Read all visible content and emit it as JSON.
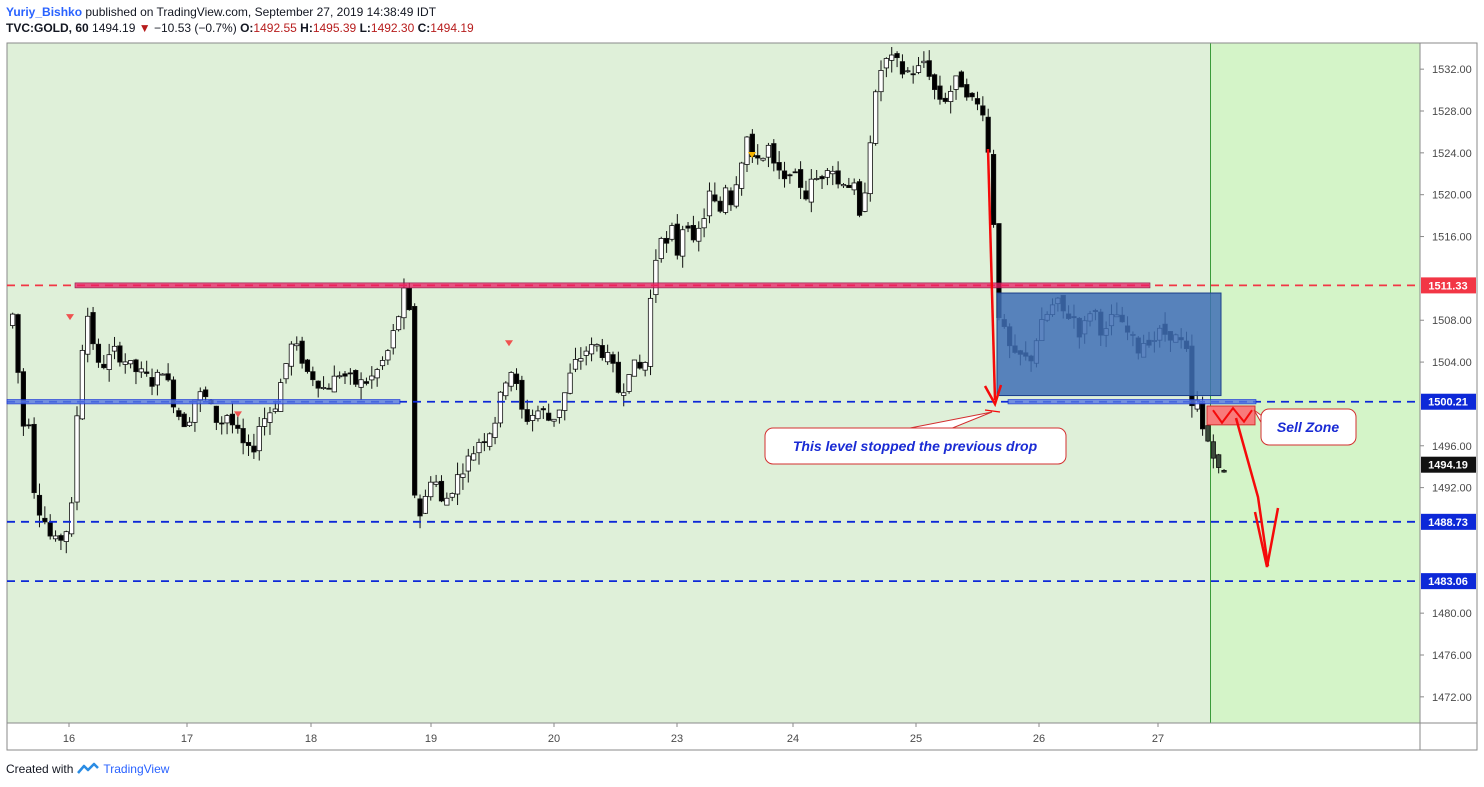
{
  "header": {
    "author": "Yuriy_Bishko",
    "published": "published on TradingView.com, September 27, 2019 14:38:49 IDT",
    "symbol": "TVC:GOLD, 60",
    "last": "1494.19",
    "change": "−10.53 (−0.7%)",
    "o_label": "O:",
    "o_value": "1492.55",
    "h_label": "H:",
    "h_value": "1495.39",
    "l_label": "L:",
    "l_value": "1492.30",
    "c_label": "C:",
    "c_value": "1494.19"
  },
  "footer": {
    "created": "Created with",
    "brand": "TradingView",
    "logo_icon": "tradingview-logo-icon"
  },
  "colors": {
    "bg_main": "#dff0d9",
    "bg_future": "#d4f4c8",
    "up_candle": "#ffffff",
    "down_candle": "#000000",
    "resistance": "#e91e63",
    "support": "#0d28d8",
    "arrow": "#f50a0a",
    "zone_blue": "#3f6fb5",
    "zone_red": "#f87b7b"
  },
  "chart_data": {
    "type": "candlestick",
    "symbol": "TVC:GOLD",
    "timeframe": "60",
    "x_ticks": [
      "16",
      "17",
      "18",
      "19",
      "20",
      "23",
      "24",
      "25",
      "26",
      "27"
    ],
    "y_ticks": [
      "1532.00",
      "1528.00",
      "1524.00",
      "1520.00",
      "1516.00",
      "1508.00",
      "1504.00",
      "1496.00",
      "1492.00",
      "1480.00",
      "1476.00",
      "1472.00"
    ],
    "ylim": [
      1469.5,
      1534.5
    ],
    "levels": [
      {
        "label": "1511.33",
        "value": 1511.33,
        "style": "dashed",
        "color": "#f23645"
      },
      {
        "label": "1500.21",
        "value": 1500.21,
        "style": "dashed",
        "color": "#0d28d8"
      },
      {
        "label": "1488.73",
        "value": 1488.73,
        "style": "dashed",
        "color": "#0d28d8"
      },
      {
        "label": "1483.06",
        "value": 1483.06,
        "style": "dashed",
        "color": "#0d28d8"
      }
    ],
    "last_price": {
      "label": "1494.19",
      "value": 1494.19
    },
    "annotations": [
      {
        "text": "This level stopped the previous drop"
      },
      {
        "text": "Sell Zone"
      }
    ],
    "path": [
      [
        0,
        1507.5
      ],
      [
        3,
        1509.0
      ],
      [
        6,
        1503.0
      ],
      [
        10,
        1498.0
      ],
      [
        14,
        1498.5
      ],
      [
        18,
        1492.0
      ],
      [
        22,
        1490.0
      ],
      [
        27,
        1488.5
      ],
      [
        32,
        1486.5
      ],
      [
        37,
        1487.0
      ],
      [
        42,
        1488.0
      ],
      [
        46,
        1490.0
      ],
      [
        50,
        1499.0
      ],
      [
        54,
        1505.5
      ],
      [
        58,
        1508.5
      ],
      [
        62,
        1506.0
      ],
      [
        66,
        1503.5
      ],
      [
        72,
        1504.0
      ],
      [
        78,
        1505.0
      ],
      [
        84,
        1504.5
      ],
      [
        90,
        1503.5
      ],
      [
        96,
        1503.0
      ],
      [
        102,
        1502.5
      ],
      [
        108,
        1502.0
      ],
      [
        114,
        1503.5
      ],
      [
        120,
        1501.0
      ],
      [
        126,
        1499.0
      ],
      [
        132,
        1498.0
      ],
      [
        138,
        1500.5
      ],
      [
        144,
        1501.0
      ],
      [
        150,
        1499.5
      ],
      [
        156,
        1498.0
      ],
      [
        162,
        1499.0
      ],
      [
        168,
        1497.5
      ],
      [
        174,
        1496.0
      ],
      [
        180,
        1495.0
      ],
      [
        186,
        1498.0
      ],
      [
        192,
        1499.0
      ],
      [
        198,
        1500.0
      ],
      [
        204,
        1503.0
      ],
      [
        210,
        1505.5
      ],
      [
        216,
        1505.0
      ],
      [
        222,
        1503.0
      ],
      [
        228,
        1502.5
      ],
      [
        234,
        1501.5
      ],
      [
        240,
        1502.0
      ],
      [
        246,
        1503.0
      ],
      [
        252,
        1502.5
      ],
      [
        258,
        1502.0
      ],
      [
        264,
        1502.0
      ],
      [
        270,
        1502.5
      ],
      [
        276,
        1503.5
      ],
      [
        282,
        1505.0
      ],
      [
        288,
        1507.5
      ],
      [
        294,
        1510.5
      ],
      [
        298,
        1508.5
      ],
      [
        302,
        1491.5
      ],
      [
        306,
        1489.5
      ],
      [
        310,
        1491.0
      ],
      [
        314,
        1493.0
      ],
      [
        318,
        1492.5
      ],
      [
        322,
        1490.5
      ],
      [
        326,
        1491.0
      ],
      [
        332,
        1492.5
      ],
      [
        338,
        1494.0
      ],
      [
        344,
        1495.0
      ],
      [
        350,
        1496.5
      ],
      [
        356,
        1497.0
      ],
      [
        362,
        1498.5
      ],
      [
        368,
        1501.5
      ],
      [
        372,
        1503.5
      ],
      [
        376,
        1503.0
      ],
      [
        380,
        1500.0
      ],
      [
        384,
        1498.5
      ],
      [
        390,
        1499.0
      ],
      [
        396,
        1499.5
      ],
      [
        402,
        1498.5
      ],
      [
        408,
        1499.0
      ],
      [
        414,
        1501.0
      ],
      [
        420,
        1503.5
      ],
      [
        426,
        1504.5
      ],
      [
        432,
        1505.5
      ],
      [
        436,
        1505.0
      ],
      [
        440,
        1506.0
      ],
      [
        444,
        1504.0
      ],
      [
        448,
        1504.5
      ],
      [
        452,
        1502.0
      ],
      [
        456,
        1500.5
      ],
      [
        460,
        1503.0
      ],
      [
        464,
        1504.0
      ],
      [
        468,
        1503.0
      ],
      [
        474,
        1504.0
      ],
      [
        478,
        1510.0
      ],
      [
        482,
        1514.0
      ],
      [
        486,
        1516.5
      ],
      [
        490,
        1515.0
      ],
      [
        494,
        1516.5
      ],
      [
        498,
        1514.5
      ],
      [
        502,
        1517.0
      ],
      [
        506,
        1517.5
      ],
      [
        510,
        1515.0
      ],
      [
        514,
        1516.5
      ],
      [
        518,
        1518.0
      ],
      [
        522,
        1520.0
      ],
      [
        526,
        1519.0
      ],
      [
        530,
        1518.5
      ],
      [
        534,
        1521.0
      ],
      [
        538,
        1519.5
      ],
      [
        542,
        1521.5
      ],
      [
        546,
        1523.5
      ],
      [
        550,
        1525.5
      ],
      [
        554,
        1523.0
      ],
      [
        558,
        1524.0
      ],
      [
        562,
        1523.5
      ],
      [
        566,
        1524.5
      ],
      [
        570,
        1522.5
      ],
      [
        574,
        1522.0
      ],
      [
        578,
        1521.0
      ],
      [
        582,
        1522.5
      ],
      [
        586,
        1521.5
      ],
      [
        590,
        1521.0
      ],
      [
        594,
        1520.0
      ],
      [
        598,
        1521.0
      ],
      [
        602,
        1521.5
      ],
      [
        606,
        1522.0
      ],
      [
        610,
        1523.0
      ],
      [
        614,
        1522.5
      ],
      [
        618,
        1521.0
      ],
      [
        622,
        1521.5
      ],
      [
        626,
        1521.0
      ],
      [
        630,
        1520.5
      ],
      [
        634,
        1517.5
      ],
      [
        636,
        1518.0
      ],
      [
        640,
        1523.5
      ],
      [
        644,
        1527.5
      ],
      [
        648,
        1531.0
      ],
      [
        652,
        1533.0
      ],
      [
        656,
        1532.5
      ],
      [
        660,
        1533.0
      ],
      [
        664,
        1532.0
      ],
      [
        668,
        1531.5
      ],
      [
        672,
        1532.0
      ],
      [
        676,
        1531.5
      ],
      [
        680,
        1532.5
      ],
      [
        684,
        1533.0
      ],
      [
        688,
        1530.5
      ],
      [
        692,
        1529.5
      ],
      [
        696,
        1529.0
      ],
      [
        700,
        1529.5
      ],
      [
        704,
        1530.5
      ],
      [
        708,
        1531.0
      ],
      [
        712,
        1530.5
      ],
      [
        716,
        1529.5
      ],
      [
        720,
        1528.5
      ],
      [
        724,
        1528.5
      ],
      [
        728,
        1528.0
      ],
      [
        732,
        1520.0
      ],
      [
        734,
        1517.5
      ],
      [
        736,
        1510.0
      ],
      [
        740,
        1507.5
      ],
      [
        744,
        1506.0
      ],
      [
        748,
        1504.5
      ],
      [
        752,
        1504.0
      ],
      [
        756,
        1505.0
      ],
      [
        760,
        1503.5
      ],
      [
        764,
        1505.5
      ],
      [
        768,
        1507.0
      ],
      [
        772,
        1508.0
      ],
      [
        776,
        1509.0
      ],
      [
        780,
        1509.5
      ],
      [
        784,
        1509.5
      ],
      [
        788,
        1508.0
      ],
      [
        792,
        1509.0
      ],
      [
        796,
        1507.5
      ],
      [
        800,
        1506.5
      ],
      [
        804,
        1508.5
      ],
      [
        808,
        1509.5
      ],
      [
        812,
        1508.0
      ],
      [
        816,
        1506.5
      ],
      [
        820,
        1507.0
      ],
      [
        824,
        1509.0
      ],
      [
        828,
        1508.0
      ],
      [
        832,
        1506.5
      ],
      [
        836,
        1507.0
      ],
      [
        840,
        1505.0
      ],
      [
        844,
        1505.5
      ],
      [
        848,
        1506.5
      ],
      [
        852,
        1506.0
      ],
      [
        856,
        1506.5
      ],
      [
        860,
        1507.0
      ],
      [
        864,
        1506.5
      ],
      [
        868,
        1507.0
      ],
      [
        872,
        1505.5
      ],
      [
        876,
        1506.0
      ],
      [
        880,
        1503.5
      ],
      [
        882,
        1499.5
      ],
      [
        886,
        1500.0
      ],
      [
        890,
        1497.5
      ],
      [
        894,
        1496.5
      ],
      [
        898,
        1495.5
      ],
      [
        902,
        1493.5
      ],
      [
        904,
        1492.5
      ],
      [
        908,
        1494.2
      ]
    ]
  }
}
